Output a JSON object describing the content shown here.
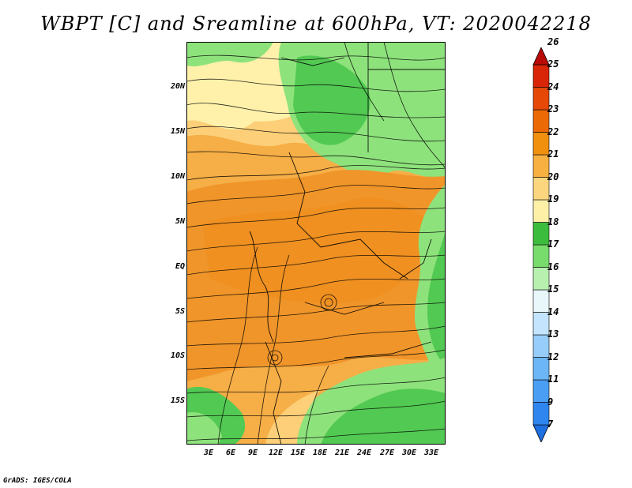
{
  "title": "WBPT [C] and Sreamline at 600hPa, VT: 2020042218",
  "credit": "GrADS: IGES/COLA",
  "lat_ticks": [
    "20N",
    "15N",
    "10N",
    "5N",
    "EQ",
    "5S",
    "10S",
    "15S"
  ],
  "lon_ticks": [
    "3E",
    "6E",
    "9E",
    "12E",
    "15E",
    "18E",
    "21E",
    "24E",
    "27E",
    "30E",
    "33E"
  ],
  "colorbar": {
    "labels": [
      "7",
      "9",
      "11",
      "12",
      "13",
      "14",
      "15",
      "16",
      "17",
      "18",
      "19",
      "20",
      "21",
      "22",
      "23",
      "24",
      "25",
      "26"
    ],
    "colors": [
      "#1e6fe0",
      "#2f86ee",
      "#4a9ff5",
      "#6cb6f8",
      "#96cdfb",
      "#c4e4fd",
      "#e9f7fb",
      "#b8f0b0",
      "#78dc6c",
      "#3cbc3c",
      "#fff0a8",
      "#fcd67e",
      "#f8b040",
      "#f0900e",
      "#ec6a06",
      "#e64808",
      "#da2608",
      "#b80a06"
    ]
  },
  "colors": {
    "warm_orange": "#f4a43a",
    "light_orange": "#fccf78",
    "pale_yellow": "#fff1aa",
    "light_green": "#8ee27c",
    "green": "#52c952",
    "pale_green": "#b9f0aa",
    "streamline": "#000000"
  }
}
